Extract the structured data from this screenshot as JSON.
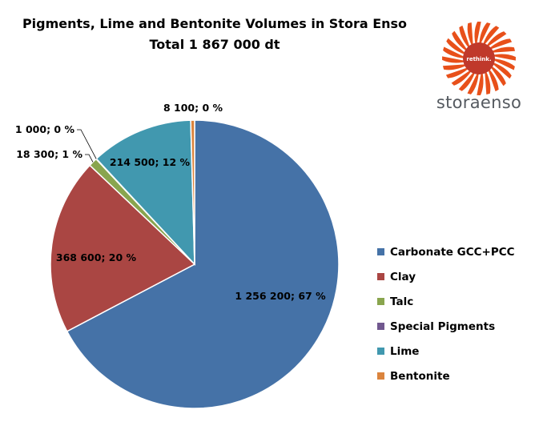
{
  "chart_data": {
    "type": "pie",
    "title": "Pigments, Lime and Bentonite Volumes in Stora Enso",
    "subtitle": "Total  1 867 000 dt",
    "slices": [
      {
        "name": "Carbonate GCC+PCC",
        "value": 1256200,
        "label": "1 256 200; 67 %",
        "color": "#4572a7"
      },
      {
        "name": "Clay",
        "value": 368600,
        "label": "368 600; 20 %",
        "color": "#aa4643"
      },
      {
        "name": "Talc",
        "value": 18300,
        "label": "18 300; 1 %",
        "color": "#89a54e"
      },
      {
        "name": "Special Pigments",
        "value": 1000,
        "label": "1 000; 0 %",
        "color": "#71588f"
      },
      {
        "name": "Lime",
        "value": 214500,
        "label": "214 500; 12 %",
        "color": "#4198af"
      },
      {
        "name": "Bentonite",
        "value": 8100,
        "label": "8 100; 0 %",
        "color": "#db843d"
      }
    ],
    "legend_position": "right"
  },
  "logo": {
    "tagline": "rethink.",
    "name": "storaenso",
    "sun_color": "#e8501a",
    "sun_inner_color": "#c0392b"
  }
}
